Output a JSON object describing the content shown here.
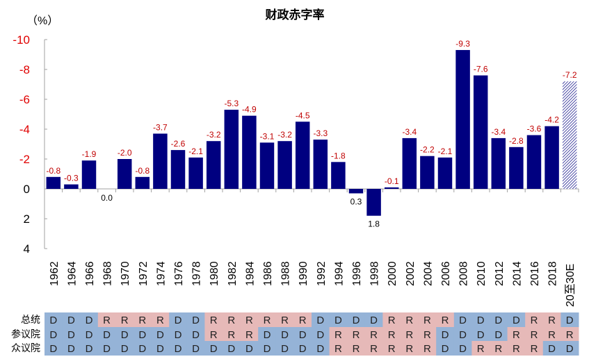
{
  "chart_data": {
    "type": "bar",
    "title": "财政赤字率",
    "ylabel": "（%）",
    "ylim": [
      -10,
      4
    ],
    "y_inverted": true,
    "yticks": [
      -10,
      -8,
      -6,
      -4,
      -2,
      0,
      2,
      4
    ],
    "grid": false,
    "categories": [
      "1962",
      "1964",
      "1966",
      "1968",
      "1970",
      "1972",
      "1974",
      "1976",
      "1978",
      "1980",
      "1982",
      "1984",
      "1986",
      "1988",
      "1990",
      "1992",
      "1994",
      "1996",
      "1998",
      "2000",
      "2002",
      "2004",
      "2006",
      "2008",
      "2010",
      "2012",
      "2014",
      "2016",
      "2018",
      "20至30E"
    ],
    "values": [
      -0.8,
      -0.3,
      -1.9,
      0.0,
      -2.0,
      -0.8,
      -3.7,
      -2.6,
      -2.1,
      -3.2,
      -5.3,
      -4.9,
      -3.1,
      -3.2,
      -4.5,
      -3.3,
      -1.8,
      0.3,
      1.8,
      -0.1,
      -3.4,
      -2.2,
      -2.1,
      -9.3,
      -7.6,
      -3.4,
      -2.8,
      -3.6,
      -4.2,
      -7.2
    ],
    "estimate_category": "20至30E",
    "colors": {
      "bar": "#000080",
      "negative_label": "#c00000",
      "positive_label": "#000000",
      "democrat": "#95b3d7",
      "republican": "#e6b9b8"
    },
    "party_table": {
      "rows": [
        {
          "label": "总统",
          "values": [
            "D",
            "D",
            "D",
            "R",
            "R",
            "R",
            "R",
            "D",
            "D",
            "R",
            "R",
            "R",
            "R",
            "R",
            "R",
            "D",
            "D",
            "D",
            "D",
            "R",
            "R",
            "R",
            "R",
            "D",
            "D",
            "D",
            "D",
            "R",
            "R",
            "D"
          ]
        },
        {
          "label": "参议院",
          "values": [
            "D",
            "D",
            "D",
            "D",
            "D",
            "D",
            "D",
            "D",
            "D",
            "R",
            "R",
            "R",
            "D",
            "D",
            "D",
            "D",
            "R",
            "R",
            "R",
            "R",
            "R",
            "R",
            "D",
            "D",
            "D",
            "D",
            "R",
            "R",
            "R",
            "R"
          ]
        },
        {
          "label": "众议院",
          "values": [
            "D",
            "D",
            "D",
            "D",
            "D",
            "D",
            "D",
            "D",
            "D",
            "D",
            "D",
            "D",
            "D",
            "D",
            "D",
            "D",
            "R",
            "R",
            "R",
            "R",
            "R",
            "R",
            "D",
            "D",
            "R",
            "R",
            "R",
            "R",
            "D",
            "D"
          ]
        }
      ]
    }
  }
}
